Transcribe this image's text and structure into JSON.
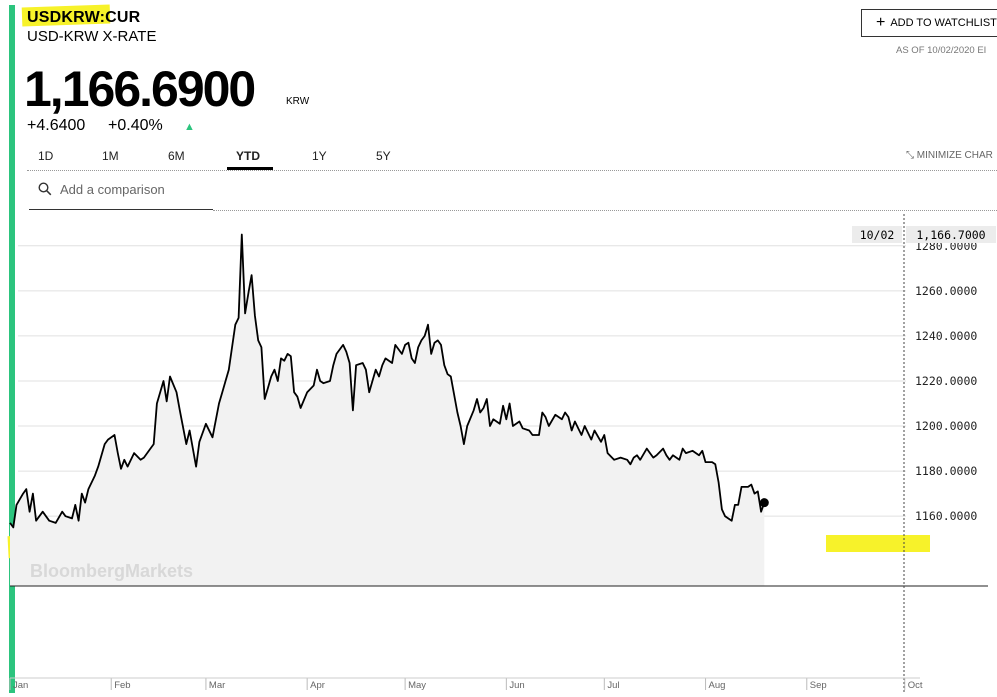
{
  "header": {
    "symbol": "USDKRW:CUR",
    "name": "USD-KRW X-RATE",
    "price": "1,166.6900",
    "currency": "KRW",
    "change": "+4.6400",
    "change_pct": "+0.40%",
    "up_arrow": "▲"
  },
  "toolbar": {
    "watchlist_label": "ADD TO WATCHLIST",
    "as_of": "AS OF 10/02/2020 EI",
    "minimize_label": "MINIMIZE CHAR"
  },
  "ranges": [
    "1D",
    "1M",
    "6M",
    "YTD",
    "1Y",
    "5Y"
  ],
  "active_range": "YTD",
  "search": {
    "placeholder": "Add a comparison"
  },
  "colors": {
    "accent": "#2cc47e",
    "highlight": "#f7f22a",
    "area_fill": "#f2f2f2",
    "line": "#000000"
  },
  "chart_data": {
    "type": "area",
    "watermark": "BloombergMarkets",
    "tooltip": {
      "date": "10/02",
      "value": "1,166.7000"
    },
    "ylim": [
      1129,
      1295
    ],
    "yticks": [
      1160,
      1180,
      1200,
      1220,
      1240,
      1260,
      1280
    ],
    "ytick_labels": [
      "1160.0000",
      "1180.0000",
      "1200.0000",
      "1220.0000",
      "1240.0000",
      "1260.0000",
      "1280.0000"
    ],
    "xlim": [
      0,
      275
    ],
    "xticks": [
      0,
      31,
      60,
      91,
      121,
      152,
      182,
      213,
      244,
      274
    ],
    "xtick_labels": [
      "Jan",
      "Feb",
      "Mar",
      "Apr",
      "May",
      "Jun",
      "Jul",
      "Aug",
      "Sep",
      "Oct"
    ],
    "grid": true,
    "series": [
      {
        "values": [
          [
            0,
            1157
          ],
          [
            1,
            1155
          ],
          [
            2,
            1165
          ],
          [
            4,
            1170
          ],
          [
            5,
            1172
          ],
          [
            6,
            1162
          ],
          [
            7,
            1170
          ],
          [
            8,
            1158
          ],
          [
            10,
            1162
          ],
          [
            12,
            1158
          ],
          [
            14,
            1157
          ],
          [
            16,
            1162
          ],
          [
            17,
            1160
          ],
          [
            19,
            1159
          ],
          [
            20,
            1165
          ],
          [
            21,
            1158
          ],
          [
            22,
            1170
          ],
          [
            23,
            1166
          ],
          [
            24,
            1172
          ],
          [
            26,
            1178
          ],
          [
            27,
            1182
          ],
          [
            29,
            1192
          ],
          [
            30,
            1194
          ],
          [
            32,
            1196
          ],
          [
            33,
            1188
          ],
          [
            34,
            1181
          ],
          [
            35,
            1185
          ],
          [
            36,
            1182
          ],
          [
            38,
            1188
          ],
          [
            40,
            1185
          ],
          [
            41,
            1186
          ],
          [
            43,
            1190
          ],
          [
            44,
            1192
          ],
          [
            45,
            1210
          ],
          [
            47,
            1220
          ],
          [
            48,
            1211
          ],
          [
            49,
            1222
          ],
          [
            51,
            1215
          ],
          [
            52,
            1207
          ],
          [
            54,
            1192
          ],
          [
            55,
            1198
          ],
          [
            57,
            1182
          ],
          [
            58,
            1193
          ],
          [
            60,
            1201
          ],
          [
            62,
            1195
          ],
          [
            64,
            1210
          ],
          [
            65,
            1215
          ],
          [
            67,
            1225
          ],
          [
            69,
            1245
          ],
          [
            70,
            1248
          ],
          [
            71,
            1285
          ],
          [
            72,
            1250
          ],
          [
            73,
            1259
          ],
          [
            74,
            1267
          ],
          [
            75,
            1249
          ],
          [
            76,
            1238
          ],
          [
            77,
            1235
          ],
          [
            78,
            1212
          ],
          [
            79,
            1217
          ],
          [
            80,
            1222
          ],
          [
            81,
            1225
          ],
          [
            82,
            1220
          ],
          [
            83,
            1230
          ],
          [
            84,
            1229
          ],
          [
            85,
            1232
          ],
          [
            86,
            1231
          ],
          [
            87,
            1215
          ],
          [
            88,
            1213
          ],
          [
            89,
            1208
          ],
          [
            91,
            1215
          ],
          [
            93,
            1218
          ],
          [
            94,
            1225
          ],
          [
            95,
            1220
          ],
          [
            96,
            1219
          ],
          [
            98,
            1220
          ],
          [
            99,
            1227
          ],
          [
            100,
            1232
          ],
          [
            102,
            1236
          ],
          [
            103,
            1233
          ],
          [
            104,
            1228
          ],
          [
            105,
            1207
          ],
          [
            106,
            1227
          ],
          [
            108,
            1228
          ],
          [
            109,
            1225
          ],
          [
            110,
            1215
          ],
          [
            112,
            1225
          ],
          [
            113,
            1222
          ],
          [
            114,
            1227
          ],
          [
            115,
            1230
          ],
          [
            117,
            1228
          ],
          [
            118,
            1236
          ],
          [
            120,
            1232
          ],
          [
            121,
            1236
          ],
          [
            122,
            1237
          ],
          [
            123,
            1230
          ],
          [
            124,
            1228
          ],
          [
            125,
            1235
          ],
          [
            126,
            1238
          ],
          [
            127,
            1240
          ],
          [
            128,
            1245
          ],
          [
            129,
            1232
          ],
          [
            130,
            1237
          ],
          [
            131,
            1238
          ],
          [
            132,
            1236
          ],
          [
            133,
            1227
          ],
          [
            134,
            1223
          ],
          [
            135,
            1222
          ],
          [
            137,
            1206
          ],
          [
            138,
            1200
          ],
          [
            139,
            1192
          ],
          [
            140,
            1200
          ],
          [
            142,
            1207
          ],
          [
            143,
            1212
          ],
          [
            144,
            1206
          ],
          [
            145,
            1208
          ],
          [
            146,
            1212
          ],
          [
            147,
            1200
          ],
          [
            148,
            1203
          ],
          [
            150,
            1201
          ],
          [
            151,
            1209
          ],
          [
            152,
            1203
          ],
          [
            153,
            1210
          ],
          [
            154,
            1200
          ],
          [
            156,
            1202
          ],
          [
            157,
            1199
          ],
          [
            159,
            1198
          ],
          [
            160,
            1196
          ],
          [
            162,
            1196
          ],
          [
            163,
            1206
          ],
          [
            164,
            1204
          ],
          [
            165,
            1200
          ],
          [
            167,
            1205
          ],
          [
            169,
            1203
          ],
          [
            170,
            1206
          ],
          [
            171,
            1204
          ],
          [
            172,
            1198
          ],
          [
            173,
            1202
          ],
          [
            175,
            1196
          ],
          [
            176,
            1200
          ],
          [
            178,
            1194
          ],
          [
            179,
            1198
          ],
          [
            181,
            1193
          ],
          [
            182,
            1196
          ],
          [
            183,
            1188
          ],
          [
            185,
            1185
          ],
          [
            187,
            1186
          ],
          [
            189,
            1185
          ],
          [
            190,
            1183
          ],
          [
            191,
            1186
          ],
          [
            192,
            1187
          ],
          [
            193,
            1185
          ],
          [
            195,
            1190
          ],
          [
            196,
            1188
          ],
          [
            197,
            1186
          ],
          [
            198,
            1187
          ],
          [
            200,
            1190
          ],
          [
            201,
            1187
          ],
          [
            202,
            1185
          ],
          [
            203,
            1187
          ],
          [
            205,
            1185
          ],
          [
            206,
            1190
          ],
          [
            207,
            1188
          ],
          [
            209,
            1189
          ],
          [
            211,
            1187
          ],
          [
            212,
            1189
          ],
          [
            213,
            1184
          ],
          [
            215,
            1184
          ],
          [
            216,
            1183
          ],
          [
            217,
            1175
          ],
          [
            218,
            1163
          ],
          [
            219,
            1160
          ],
          [
            221,
            1158
          ],
          [
            222,
            1165
          ],
          [
            223,
            1165
          ],
          [
            224,
            1173
          ],
          [
            226,
            1173
          ],
          [
            227,
            1174
          ],
          [
            228,
            1170
          ],
          [
            229,
            1171
          ],
          [
            230,
            1162
          ],
          [
            231,
            1166
          ]
        ]
      }
    ]
  }
}
